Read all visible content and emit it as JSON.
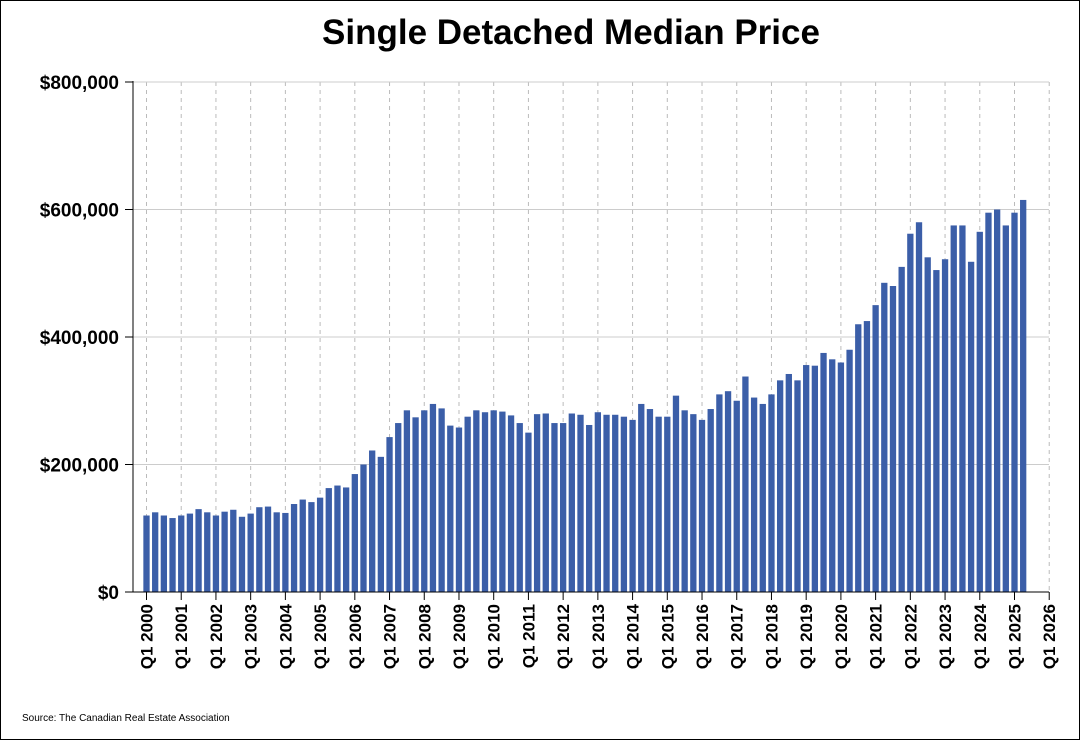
{
  "source": "Source: The Canadian Real Estate Association",
  "colors": {
    "bar": "#3b5ea8",
    "grid_h": "#cccccc",
    "grid_v": "#bbbbbb"
  },
  "chart_data": {
    "type": "bar",
    "title": "Single Detached Median Price",
    "ylim": [
      0,
      800000
    ],
    "yticks": [
      0,
      200000,
      400000,
      600000,
      800000
    ],
    "ytick_labels": [
      "$0",
      "$200,000",
      "$400,000",
      "$600,000",
      "$800,000"
    ],
    "xtick_labels": [
      "Q1 2000",
      "Q1 2001",
      "Q1 2002",
      "Q1 2003",
      "Q1 2004",
      "Q1 2005",
      "Q1 2006",
      "Q1 2007",
      "Q1 2008",
      "Q1 2009",
      "Q1 2010",
      "Q1 2011",
      "Q1 2012",
      "Q1 2013",
      "Q1 2014",
      "Q1 2015",
      "Q1 2016",
      "Q1 2017",
      "Q1 2018",
      "Q1 2019",
      "Q1 2020",
      "Q1 2021",
      "Q1 2022",
      "Q1 2023",
      "Q1 2024",
      "Q1 2025",
      "Q1 2026"
    ],
    "grid": true,
    "legend": "none",
    "first_quarter": "Q1 2000",
    "values": [
      120000,
      125000,
      120000,
      116000,
      120000,
      123000,
      130000,
      125000,
      120000,
      126000,
      129000,
      118000,
      123000,
      133000,
      134000,
      125000,
      124000,
      138000,
      145000,
      141000,
      148000,
      163000,
      167000,
      164000,
      185000,
      200000,
      222000,
      212000,
      243000,
      265000,
      285000,
      274000,
      285000,
      295000,
      288000,
      261000,
      258000,
      275000,
      285000,
      282000,
      285000,
      283000,
      277000,
      265000,
      250000,
      279000,
      280000,
      265000,
      265000,
      280000,
      278000,
      262000,
      282000,
      278000,
      278000,
      275000,
      270000,
      295000,
      287000,
      275000,
      275000,
      308000,
      285000,
      279000,
      270000,
      287000,
      310000,
      315000,
      300000,
      338000,
      305000,
      295000,
      310000,
      332000,
      342000,
      332000,
      356000,
      355000,
      375000,
      365000,
      360000,
      380000,
      420000,
      425000,
      450000,
      485000,
      480000,
      510000,
      562000,
      580000,
      525000,
      505000,
      522000,
      575000,
      575000,
      518000,
      565000,
      595000,
      600000,
      575000,
      595000,
      615000
    ]
  }
}
